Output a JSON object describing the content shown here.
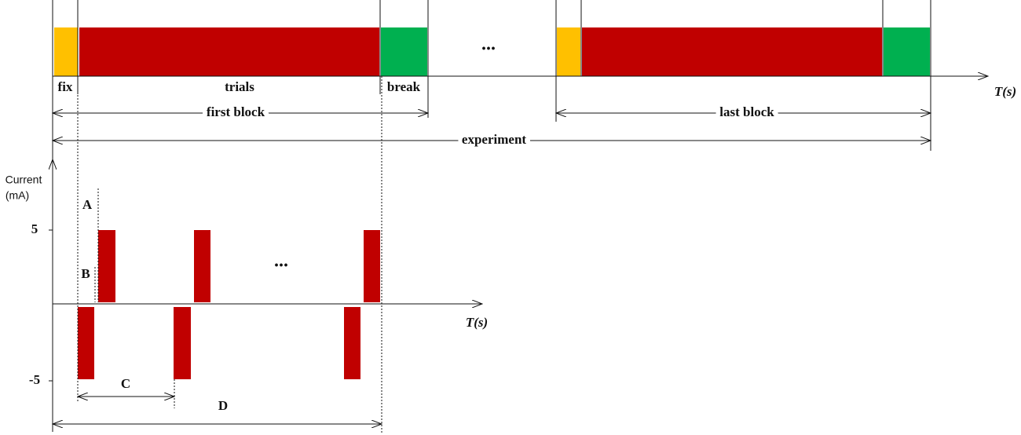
{
  "timeline": {
    "labels": {
      "fix": "fix",
      "trials": "trials",
      "break": "break",
      "ellipsis": "...",
      "axis": "T(s)"
    },
    "spans": {
      "first_block": "first block",
      "last_block": "last block",
      "experiment": "experiment"
    }
  },
  "current_plot": {
    "y_label_1": "Current",
    "y_label_2": "(mA)",
    "tick_high": "5",
    "tick_low": "-5",
    "labels": {
      "a": "A",
      "b": "B",
      "c": "C",
      "d": "D",
      "ellipsis": "...",
      "axis": "T(s)"
    }
  }
}
